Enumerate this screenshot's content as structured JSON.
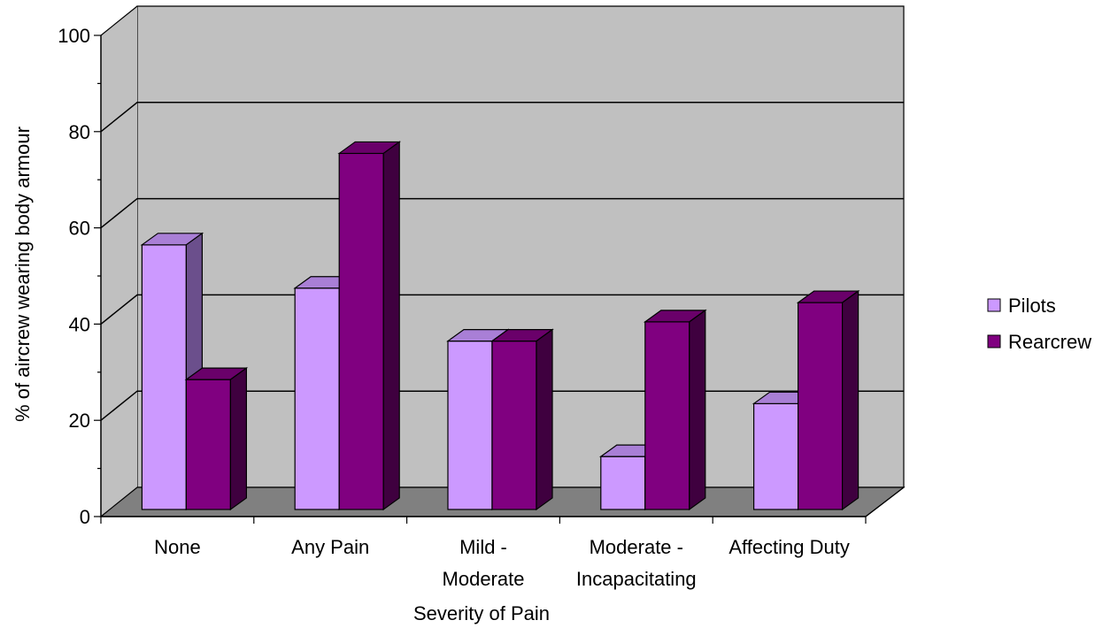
{
  "chart_data": {
    "type": "bar",
    "title": "",
    "xlabel": "Severity of Pain",
    "ylabel": "% of aircrew wearing body armour",
    "categories": [
      [
        "None"
      ],
      [
        "Any Pain"
      ],
      [
        "Mild -",
        "Moderate"
      ],
      [
        "Moderate -",
        "Incapacitating"
      ],
      [
        "Affecting Duty"
      ]
    ],
    "series": [
      {
        "name": "Pilots",
        "values": [
          55,
          46,
          35,
          11,
          22
        ]
      },
      {
        "name": "Rearcrew",
        "values": [
          27,
          74,
          35,
          39,
          43
        ]
      }
    ],
    "ylim": [
      0,
      100
    ],
    "yticks": [
      0,
      20,
      40,
      60,
      80,
      100
    ],
    "grid": true,
    "legend_position": "right",
    "style": "3d-clustered-column"
  },
  "colors": {
    "pilots_front": "#cc99ff",
    "pilots_top": "#a97fd6",
    "pilots_side": "#6b4f8c",
    "rearcrew_front": "#800080",
    "rearcrew_top": "#6a006a",
    "rearcrew_side": "#3f003f",
    "wall": "#c0c0c0",
    "floor": "#808080"
  }
}
